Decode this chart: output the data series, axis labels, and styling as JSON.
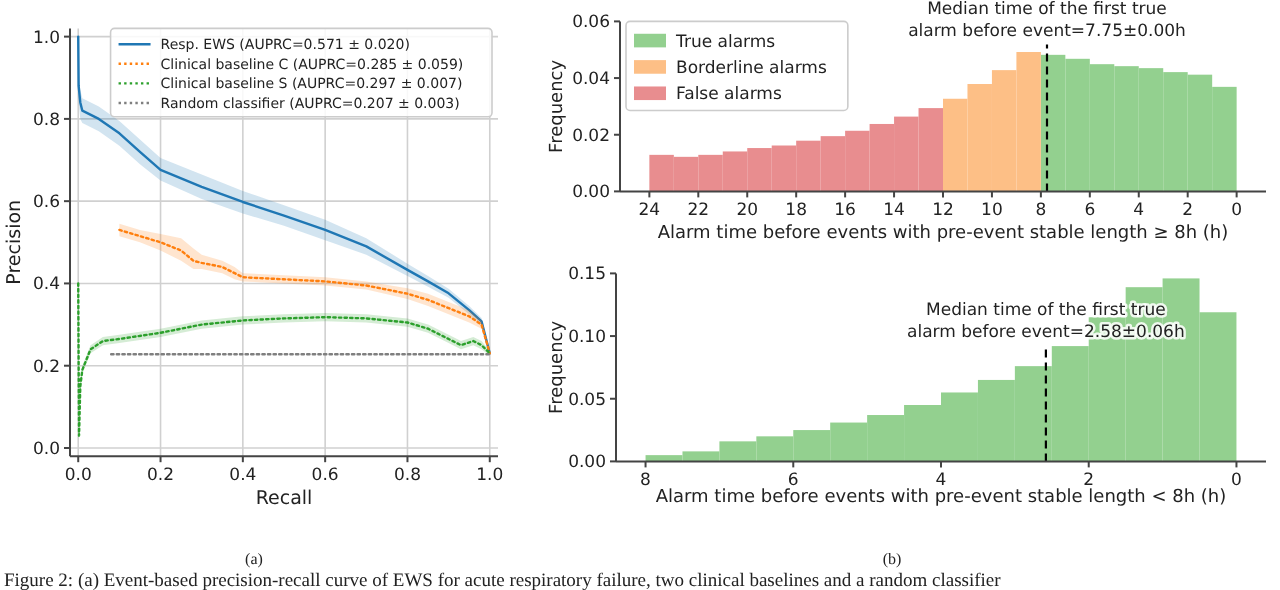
{
  "chart_data": [
    {
      "type": "line",
      "xlabel": "Recall",
      "ylabel": "Precision",
      "xlim": [
        -0.02,
        1.02
      ],
      "ylim": [
        -0.02,
        1.02
      ],
      "xticks": [
        {
          "value": 0,
          "label": "0.0"
        },
        {
          "value": 0.2,
          "label": "0.2"
        },
        {
          "value": 0.4,
          "label": "0.4"
        },
        {
          "value": 0.6,
          "label": "0.6"
        },
        {
          "value": 0.8,
          "label": "0.8"
        },
        {
          "value": 1,
          "label": "1.0"
        }
      ],
      "yticks": [
        {
          "value": 0,
          "label": "0.0"
        },
        {
          "value": 0.2,
          "label": "0.2"
        },
        {
          "value": 0.4,
          "label": "0.4"
        },
        {
          "value": 0.6,
          "label": "0.6"
        },
        {
          "value": 0.8,
          "label": "0.8"
        },
        {
          "value": 1,
          "label": "1.0"
        }
      ],
      "grid": true,
      "legend": "top right",
      "series": [
        {
          "name": "Resp. EWS (AUPRC=0.571 ± 0.020)",
          "color": "#1f77b4",
          "line_style": "solid",
          "x": [
            0,
            0.001,
            0.005,
            0.01,
            0.05,
            0.1,
            0.15,
            0.2,
            0.3,
            0.4,
            0.5,
            0.6,
            0.7,
            0.8,
            0.85,
            0.9,
            0.95,
            0.98,
            1.0
          ],
          "values": [
            1.0,
            0.88,
            0.84,
            0.82,
            0.8,
            0.765,
            0.72,
            0.676,
            0.635,
            0.598,
            0.565,
            0.53,
            0.49,
            0.433,
            0.405,
            0.376,
            0.335,
            0.308,
            0.23
          ],
          "lower": [
            0.97,
            0.84,
            0.8,
            0.79,
            0.77,
            0.735,
            0.69,
            0.65,
            0.605,
            0.57,
            0.54,
            0.505,
            0.47,
            0.418,
            0.392,
            0.365,
            0.325,
            0.3,
            0.225
          ],
          "upper": [
            1.0,
            0.9,
            0.87,
            0.85,
            0.83,
            0.795,
            0.75,
            0.705,
            0.665,
            0.625,
            0.59,
            0.555,
            0.51,
            0.448,
            0.418,
            0.387,
            0.345,
            0.316,
            0.235
          ]
        },
        {
          "name": "Clinical baseline C (AUPRC=0.285 ± 0.059)",
          "color": "#ff7f0e",
          "line_style": "dotted",
          "x": [
            0.1,
            0.15,
            0.2,
            0.25,
            0.28,
            0.3,
            0.35,
            0.38,
            0.4,
            0.5,
            0.6,
            0.7,
            0.8,
            0.85,
            0.9,
            0.95,
            0.98,
            1.0
          ],
          "values": [
            0.53,
            0.515,
            0.5,
            0.48,
            0.455,
            0.45,
            0.44,
            0.425,
            0.415,
            0.41,
            0.405,
            0.395,
            0.375,
            0.36,
            0.34,
            0.32,
            0.3,
            0.23
          ],
          "lower": [
            0.515,
            0.5,
            0.48,
            0.455,
            0.435,
            0.435,
            0.425,
            0.41,
            0.405,
            0.4,
            0.395,
            0.385,
            0.362,
            0.345,
            0.325,
            0.305,
            0.29,
            0.225
          ],
          "upper": [
            0.545,
            0.53,
            0.52,
            0.51,
            0.485,
            0.47,
            0.455,
            0.44,
            0.425,
            0.42,
            0.415,
            0.405,
            0.388,
            0.375,
            0.355,
            0.335,
            0.31,
            0.235
          ]
        },
        {
          "name": "Clinical baseline S (AUPRC=0.297 ± 0.007)",
          "color": "#2ca02c",
          "line_style": "dotted",
          "x": [
            0,
            0.001,
            0.002,
            0.005,
            0.01,
            0.03,
            0.06,
            0.1,
            0.2,
            0.3,
            0.4,
            0.5,
            0.6,
            0.7,
            0.8,
            0.85,
            0.9,
            0.93,
            0.96,
            0.98,
            1.0
          ],
          "values": [
            0.4,
            0.2,
            0.03,
            0.15,
            0.19,
            0.24,
            0.26,
            0.265,
            0.28,
            0.3,
            0.31,
            0.315,
            0.318,
            0.315,
            0.305,
            0.29,
            0.265,
            0.25,
            0.26,
            0.25,
            0.23
          ],
          "lower": [
            0.38,
            0.18,
            0.02,
            0.13,
            0.18,
            0.23,
            0.25,
            0.255,
            0.27,
            0.29,
            0.3,
            0.305,
            0.308,
            0.305,
            0.295,
            0.28,
            0.255,
            0.24,
            0.25,
            0.24,
            0.225
          ],
          "upper": [
            0.41,
            0.22,
            0.05,
            0.17,
            0.2,
            0.25,
            0.27,
            0.275,
            0.29,
            0.31,
            0.32,
            0.325,
            0.328,
            0.325,
            0.315,
            0.3,
            0.275,
            0.26,
            0.27,
            0.26,
            0.235
          ]
        },
        {
          "name": "Random classifier (AUPRC=0.207 ± 0.003)",
          "color": "#7f7f7f",
          "line_style": "dotted",
          "x": [
            0.08,
            1.0
          ],
          "values": [
            0.228,
            0.228
          ]
        }
      ],
      "annotations": [
        "(a)",
        "Figure 2: (a) Event-based precision-recall curve of EWS for acute respiratory failure, two clinical baselines and a random classifier"
      ]
    },
    {
      "type": "histogram",
      "xlabel": "Alarm time before events with pre-event stable length ≥ 8h (h)",
      "ylabel": "Frequency",
      "xlim": [
        25.2,
        -1.2
      ],
      "ylim": [
        0,
        0.06
      ],
      "xticks": [
        24,
        22,
        20,
        18,
        16,
        14,
        12,
        10,
        8,
        6,
        4,
        2,
        0
      ],
      "yticks": [
        {
          "value": 0,
          "label": "0.00"
        },
        {
          "value": 0.02,
          "label": "0.02"
        },
        {
          "value": 0.04,
          "label": "0.04"
        },
        {
          "value": 0.06,
          "label": "0.06"
        }
      ],
      "legend": "top left",
      "bins": [
        24,
        23,
        22,
        21,
        20,
        19,
        18,
        17,
        16,
        15,
        14,
        13,
        12,
        11,
        10,
        9,
        8,
        7,
        6,
        5,
        4,
        3,
        2,
        1,
        0
      ],
      "series": [
        {
          "name": "True alarms",
          "color": "#93d08f",
          "values": [
            null,
            null,
            null,
            null,
            null,
            null,
            null,
            null,
            null,
            null,
            null,
            null,
            null,
            null,
            null,
            null,
            0.0482,
            0.0468,
            0.0449,
            0.0442,
            0.0435,
            0.0421,
            0.0412,
            0.0369
          ]
        },
        {
          "name": "Borderline alarms",
          "color": "#fdbf86",
          "values": [
            null,
            null,
            null,
            null,
            null,
            null,
            null,
            null,
            null,
            null,
            null,
            null,
            0.0327,
            0.0379,
            0.0428,
            0.0492,
            null,
            null,
            null,
            null,
            null,
            null,
            null,
            null
          ]
        },
        {
          "name": "False alarms",
          "color": "#e88d8f",
          "values": [
            0.0129,
            0.0122,
            0.0129,
            0.0141,
            0.0153,
            0.0162,
            0.0179,
            0.0195,
            0.0214,
            0.0238,
            0.0264,
            0.0294,
            null,
            null,
            null,
            null,
            null,
            null,
            null,
            null,
            null,
            null,
            null,
            null
          ]
        }
      ],
      "ref_lines": [
        {
          "axis": "x",
          "value": 7.75,
          "label": "Median time of the first true\nalarm before event=7.75±0.00h",
          "color": "#000000",
          "line_style": "dashed"
        }
      ]
    },
    {
      "type": "histogram",
      "xlabel": "Alarm time before events with pre-event stable length < 8h (h)",
      "ylabel": "Frequency",
      "xlim": [
        8.4,
        -0.4
      ],
      "ylim": [
        0,
        0.15
      ],
      "xticks": [
        8,
        6,
        4,
        2,
        0
      ],
      "yticks": [
        {
          "value": 0,
          "label": "0.00"
        },
        {
          "value": 0.05,
          "label": "0.05"
        },
        {
          "value": 0.1,
          "label": "0.10"
        },
        {
          "value": 0.15,
          "label": "0.15"
        }
      ],
      "bins": [
        8,
        7.5,
        7,
        6.5,
        6,
        5.5,
        5,
        4.5,
        4,
        3.5,
        3,
        2.5,
        2,
        1.5,
        1,
        0.5,
        0
      ],
      "series": [
        {
          "color": "#93d08f",
          "values": [
            0.005,
            0.008,
            0.016,
            0.02,
            0.025,
            0.031,
            0.037,
            0.045,
            0.055,
            0.065,
            0.076,
            0.092,
            0.115,
            0.139,
            0.146,
            0.119
          ]
        }
      ],
      "ref_lines": [
        {
          "axis": "x",
          "value": 2.58,
          "label": "Median time of the first true\nalarm before event=2.58±0.06h",
          "color": "#000000",
          "line_style": "dashed"
        }
      ],
      "annotations": [
        "(b)"
      ]
    }
  ]
}
